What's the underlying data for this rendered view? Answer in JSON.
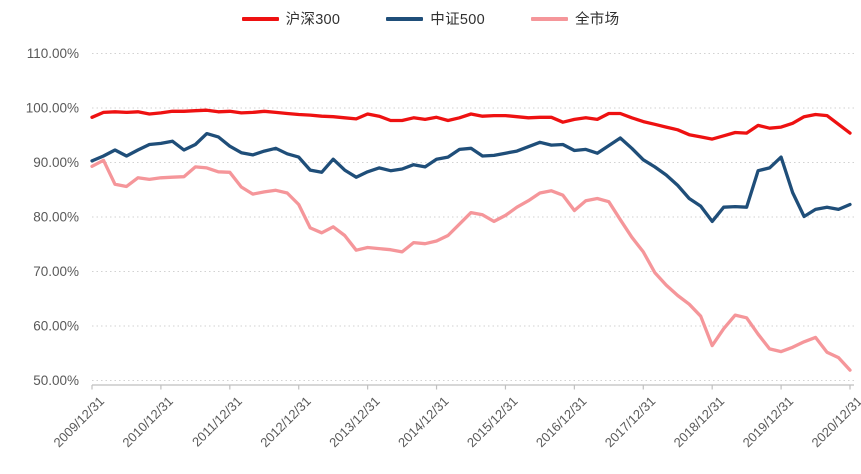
{
  "legend": [
    {
      "label": "沪深300",
      "color": "#ee1111"
    },
    {
      "label": "中证500",
      "color": "#1f4e79"
    },
    {
      "label": "全市场",
      "color": "#f5969a"
    }
  ],
  "chart_data": {
    "type": "line",
    "title": "",
    "x_tick_labels": [
      "2009/12/31",
      "2010/12/31",
      "2011/12/31",
      "2012/12/31",
      "2013/12/31",
      "2014/12/31",
      "2015/12/31",
      "2016/12/31",
      "2017/12/31",
      "2018/12/31",
      "2019/12/31",
      "2020/12/31"
    ],
    "y_tick_labels": [
      "110.00%",
      "100.00%",
      "90.00%",
      "80.00%",
      "70.00%",
      "60.00%",
      "50.00%"
    ],
    "ylim": [
      50,
      110
    ],
    "y_unit": "%",
    "grid": "horizontal-dotted",
    "legend_position": "top-center",
    "x_sampling": "bimonthly samples 2009/12 - 2020/12, 67 points per series",
    "series": [
      {
        "name": "沪深300",
        "color": "#ee1111",
        "values": [
          98.3,
          99.2,
          99.3,
          99.2,
          99.3,
          98.9,
          99.1,
          99.4,
          99.4,
          99.5,
          99.6,
          99.3,
          99.4,
          99.1,
          99.2,
          99.4,
          99.2,
          99.0,
          98.8,
          98.7,
          98.5,
          98.4,
          98.2,
          98.0,
          98.9,
          98.5,
          97.7,
          97.7,
          98.2,
          97.9,
          98.3,
          97.7,
          98.2,
          98.9,
          98.5,
          98.6,
          98.6,
          98.4,
          98.2,
          98.3,
          98.3,
          97.4,
          97.9,
          98.2,
          97.9,
          99.0,
          99.0,
          98.2,
          97.5,
          97.0,
          96.5,
          96.0,
          95.1,
          94.7,
          94.3,
          94.9,
          95.5,
          95.4,
          96.8,
          96.3,
          96.5,
          97.2,
          98.4,
          98.8,
          98.6,
          97.0,
          95.4
        ]
      },
      {
        "name": "中证500",
        "color": "#1f4e79",
        "values": [
          90.3,
          91.2,
          92.3,
          91.2,
          92.3,
          93.3,
          93.5,
          93.9,
          92.3,
          93.3,
          95.3,
          94.7,
          93.0,
          91.8,
          91.4,
          92.1,
          92.6,
          91.6,
          91.0,
          88.6,
          88.2,
          90.6,
          88.6,
          87.3,
          88.3,
          89.0,
          88.5,
          88.8,
          89.6,
          89.2,
          90.6,
          91.0,
          92.4,
          92.6,
          91.2,
          91.3,
          91.7,
          92.1,
          92.9,
          93.7,
          93.2,
          93.3,
          92.2,
          92.4,
          91.7,
          93.1,
          94.5,
          92.6,
          90.5,
          89.2,
          87.7,
          85.8,
          83.4,
          82.0,
          79.2,
          81.8,
          81.9,
          81.8,
          88.5,
          89.0,
          91.0,
          84.5,
          80.1,
          81.4,
          81.8,
          81.4,
          82.3
        ]
      },
      {
        "name": "全市场",
        "color": "#f5969a",
        "values": [
          89.3,
          90.4,
          86.0,
          85.6,
          87.2,
          86.9,
          87.2,
          87.3,
          87.4,
          89.2,
          89.0,
          88.3,
          88.2,
          85.5,
          84.2,
          84.6,
          84.9,
          84.4,
          82.3,
          78.0,
          77.1,
          78.2,
          76.6,
          73.9,
          74.4,
          74.2,
          74.0,
          73.6,
          75.3,
          75.1,
          75.6,
          76.6,
          78.7,
          80.8,
          80.4,
          79.2,
          80.3,
          81.8,
          83.0,
          84.4,
          84.8,
          84.0,
          81.2,
          83.0,
          83.4,
          82.8,
          79.5,
          76.3,
          73.6,
          69.8,
          67.5,
          65.6,
          64.0,
          61.8,
          56.4,
          59.5,
          62.0,
          61.5,
          58.5,
          55.8,
          55.3,
          56.1,
          57.1,
          57.9,
          55.2,
          54.2,
          51.9
        ]
      }
    ],
    "axis_color": "#bfbfbf",
    "gridline_color": "#d2d2d2",
    "tick_label_color": "#595959"
  }
}
